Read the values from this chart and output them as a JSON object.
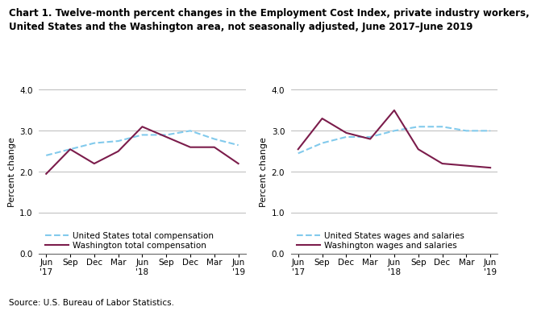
{
  "title_line1": "Chart 1. Twelve-month percent changes in the Employment Cost Index, private industry workers,",
  "title_line2": "United States and the Washington area, not seasonally adjusted, June 2017–June 2019",
  "source": "Source: U.S. Bureau of Labor Statistics.",
  "ylabel": "Percent change",
  "x_labels": [
    "Jun\n'17",
    "Sep",
    "Dec",
    "Mar",
    "Jun\n'18",
    "Sep",
    "Dec",
    "Mar",
    "Jun\n'19"
  ],
  "ylim": [
    0.0,
    4.0
  ],
  "yticks": [
    0.0,
    1.0,
    2.0,
    3.0,
    4.0
  ],
  "chart1": {
    "us_vals": [
      2.4,
      2.55,
      2.7,
      2.75,
      2.9,
      2.9,
      3.0,
      2.8,
      2.65
    ],
    "wash_vals": [
      1.95,
      2.55,
      2.2,
      2.5,
      3.1,
      2.85,
      2.6,
      2.6,
      2.2
    ],
    "legend1": "United States total compensation",
    "legend2": "Washington total compensation"
  },
  "chart2": {
    "us_vals": [
      2.45,
      2.7,
      2.85,
      2.85,
      3.0,
      3.1,
      3.1,
      3.0,
      3.0
    ],
    "wash_vals": [
      2.55,
      3.3,
      2.95,
      2.8,
      3.5,
      2.55,
      2.2,
      2.15,
      2.1
    ],
    "legend1": "United States wages and salaries",
    "legend2": "Washington wages and salaries"
  },
  "us_color": "#82caec",
  "wash_color": "#7b1c4b",
  "linewidth": 1.5,
  "grid_color": "#b0b0b0",
  "bg_color": "#ffffff",
  "title_fontsize": 8.5,
  "axis_label_fontsize": 8.0,
  "tick_fontsize": 7.5,
  "legend_fontsize": 7.5,
  "source_fontsize": 7.5
}
